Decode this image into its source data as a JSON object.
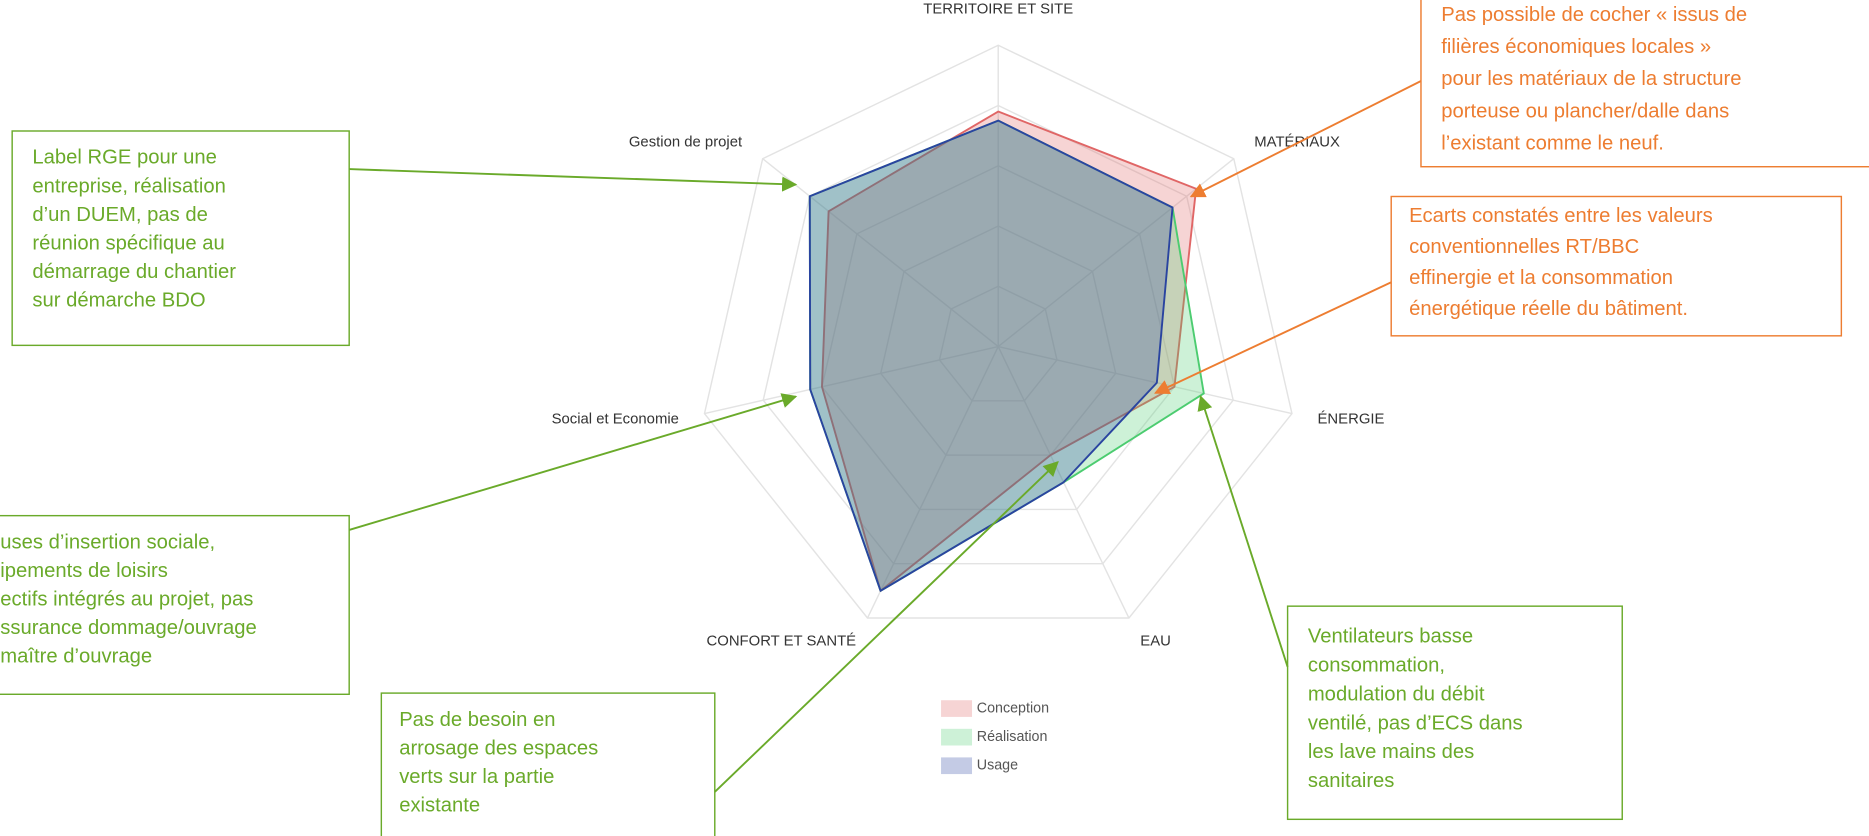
{
  "chart_data": {
    "type": "radar",
    "categories": [
      "TERRITOIRE ET SITE",
      "MATÉRIAUX",
      "ÉNERGIE",
      "EAU",
      "CONFORT ET SANTÉ",
      "Social et Economie",
      "Gestion de projet"
    ],
    "series": [
      {
        "name": "Conception",
        "color": "#e06666",
        "values": [
          3.9,
          4.2,
          3.0,
          2.0,
          4.5,
          3.0,
          3.6
        ]
      },
      {
        "name": "Réalisation",
        "color": "#4ccc70",
        "values": [
          3.75,
          3.7,
          3.5,
          2.5,
          4.5,
          3.2,
          4.0
        ]
      },
      {
        "name": "Usage",
        "color": "#2a44a0",
        "values": [
          3.75,
          3.7,
          2.7,
          2.5,
          4.5,
          3.2,
          4.0
        ]
      }
    ],
    "rlim": [
      0,
      5
    ],
    "rticks": [
      1,
      2,
      3,
      4,
      5
    ],
    "grid": true
  },
  "annotations": [
    {
      "color": "#6aaa2a",
      "lines": [
        "Label RGE pour une",
        "entreprise, réalisation",
        "d’un DUEM, pas de",
        "réunion spécifique au",
        "démarrage du chantier",
        "sur démarche BDO"
      ]
    },
    {
      "color": "#6aaa2a",
      "lines": [
        "uses d’insertion sociale,",
        "ipements de loisirs",
        "ectifs intégrés au projet, pas",
        "ssurance dommage/ouvrage",
        "maître d’ouvrage"
      ]
    },
    {
      "color": "#6aaa2a",
      "lines": [
        "Pas de besoin en",
        "arrosage des espaces",
        "verts sur la partie",
        "existante"
      ]
    },
    {
      "color": "#6aaa2a",
      "lines": [
        "Ventilateurs basse",
        "consommation,",
        "modulation du débit",
        "ventilé, pas d’ECS dans",
        "les lave mains des",
        "sanitaires"
      ]
    },
    {
      "color": "#ed7d31",
      "lines": [
        "Pas possible de cocher « issus de",
        "filières économiques locales »",
        "pour les matériaux de la structure",
        "porteuse ou plancher/dalle dans",
        "l’existant comme le neuf."
      ]
    },
    {
      "color": "#ed7d31",
      "lines": [
        "Ecarts constatés entre les valeurs",
        "conventionnelles RT/BBC",
        "effinergie et la consommation",
        "énergétique réelle du bâtiment."
      ]
    }
  ]
}
